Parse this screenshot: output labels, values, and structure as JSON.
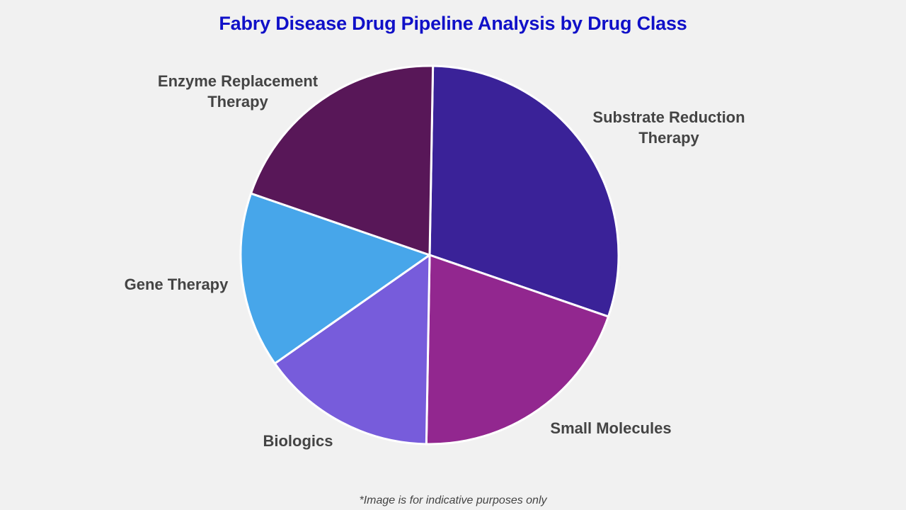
{
  "chart_data": {
    "type": "pie",
    "title": "Fabry Disease Drug Pipeline Analysis by Drug Class",
    "categories": [
      "Substrate Reduction Therapy",
      "Small Molecules",
      "Biologics",
      "Gene Therapy",
      "Enzyme Replacement Therapy"
    ],
    "values": [
      30,
      20,
      15,
      15,
      20
    ],
    "colors": [
      "#3a2298",
      "#92278f",
      "#775cdb",
      "#47a6ea",
      "#581758"
    ],
    "start_angle_deg": 1,
    "direction": "clockwise",
    "legend": "none (labels placed outside slices)",
    "footnote": "*Image is for indicative purposes only"
  },
  "labels": {
    "srt_line1": "Substrate Reduction",
    "srt_line2": "Therapy",
    "small_molecules": "Small Molecules",
    "biologics": "Biologics",
    "gene_therapy": "Gene Therapy",
    "ert_line1": "Enzyme Replacement",
    "ert_line2": "Therapy"
  }
}
